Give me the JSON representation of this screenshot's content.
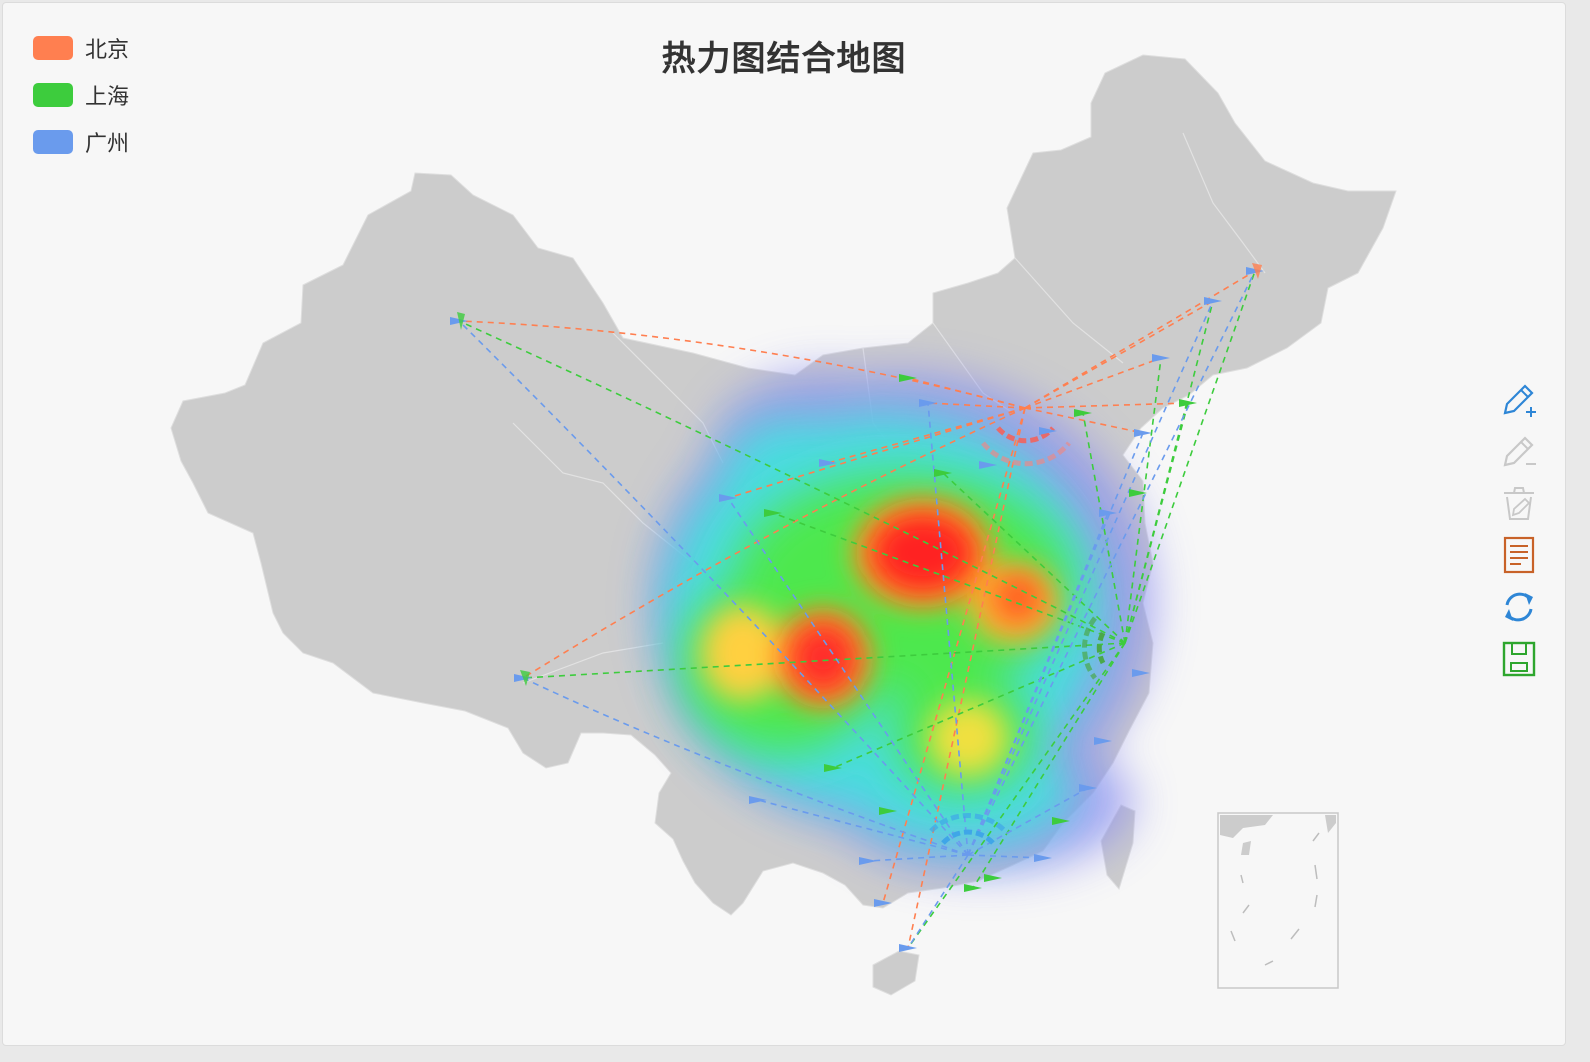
{
  "title": "热力图结合地图",
  "legend": [
    {
      "label": "北京",
      "color": "#ff7f50"
    },
    {
      "label": "上海",
      "color": "#3dcc3d"
    },
    {
      "label": "广州",
      "color": "#6a9bed"
    }
  ],
  "toolbox": [
    {
      "name": "mark-icon",
      "color": "#2e86d6",
      "enabled": true
    },
    {
      "name": "mark-undo-icon",
      "color": "#c8c8c8",
      "enabled": false
    },
    {
      "name": "mark-clear-icon",
      "color": "#c8c8c8",
      "enabled": false
    },
    {
      "name": "data-view-icon",
      "color": "#c86228",
      "enabled": true
    },
    {
      "name": "restore-icon",
      "color": "#2e86d6",
      "enabled": true
    },
    {
      "name": "save-as-image-icon",
      "color": "#2ea62e",
      "enabled": true
    }
  ],
  "map": {
    "region": "china",
    "land_color": "#cccccc",
    "border_color": "#e0e0e0"
  },
  "heatmap": {
    "gradient": [
      "#8080ff",
      "#40e0ff",
      "#40ff40",
      "#ffff00",
      "#ff2020"
    ]
  }
}
